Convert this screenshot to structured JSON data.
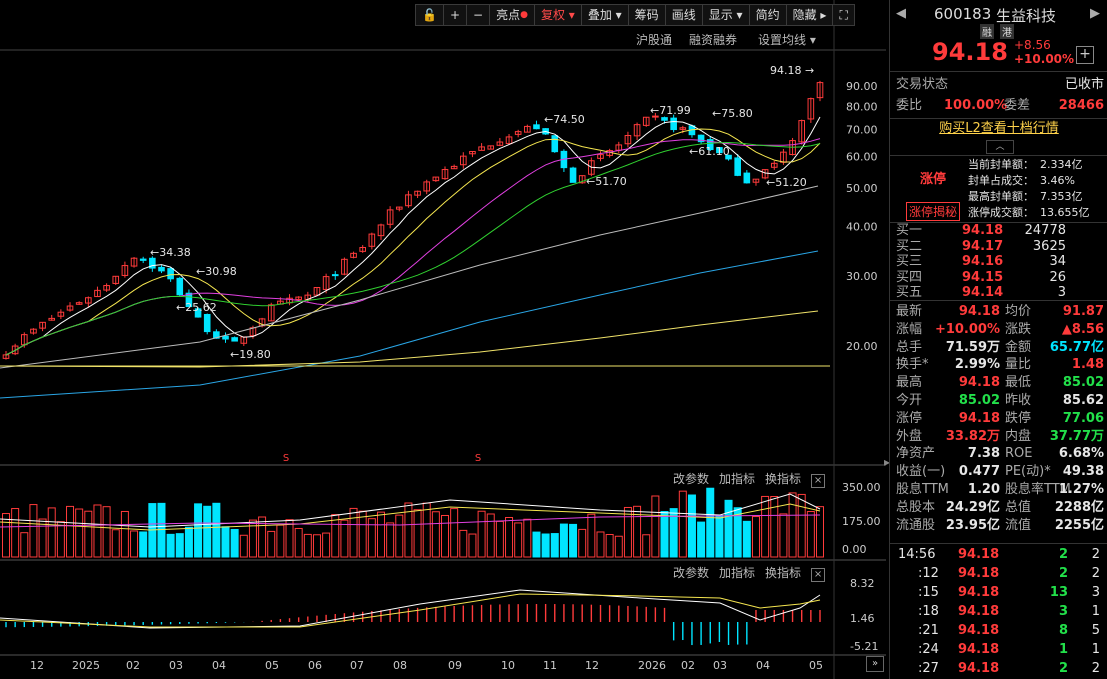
{
  "toolbar": {
    "items": [
      "亮点",
      "复权",
      "叠加",
      "筹码",
      "画线",
      "显示",
      "简约",
      "隐藏"
    ],
    "lock_icon": "lock-icon",
    "plus_icon": "zoom-in-icon",
    "minus_icon": "zoom-out-icon",
    "fullscreen_icon": "fullscreen-icon",
    "more_glyph": "▸"
  },
  "subbar": {
    "items": [
      "沪股通",
      "融资融券",
      "设置均线 ▾"
    ]
  },
  "price_labels": {
    "axis": [
      "90.00",
      "80.00",
      "70.00",
      "60.00",
      "50.00",
      "40.00",
      "30.00",
      "20.00"
    ],
    "annotations": [
      "94.18",
      "71.99",
      "75.80",
      "74.50",
      "61.10",
      "51.70",
      "51.20",
      "34.38",
      "30.98",
      "25.62",
      "19.80"
    ]
  },
  "vol_panel": {
    "buttons": [
      "改参数",
      "加指标",
      "换指标"
    ],
    "axis": [
      "350.00",
      "175.00",
      "0.00"
    ]
  },
  "macd_panel": {
    "buttons": [
      "改参数",
      "加指标",
      "换指标"
    ],
    "axis": [
      "8.32",
      "1.46",
      "-5.21"
    ]
  },
  "xaxis": [
    "12",
    "2025",
    "02",
    "03",
    "04",
    "05",
    "06",
    "07",
    "08",
    "09",
    "10",
    "11",
    "12",
    "2026",
    "02",
    "03",
    "04",
    "05"
  ],
  "markers": [
    "S",
    "S"
  ],
  "stock": {
    "code": "600183",
    "name": "生益科技",
    "tags": [
      "融",
      "港"
    ],
    "price": "94.18",
    "change": "+8.56",
    "change_pct": "+10.00%",
    "add_icon": "plus-box-icon"
  },
  "status": {
    "label": "交易状态",
    "value": "已收市"
  },
  "weibi": {
    "l1": "委比",
    "v1": "100.00%",
    "l2": "委差",
    "v2": "28466"
  },
  "l2_link": "购买L2查看十档行情",
  "limit": {
    "title": "涨停",
    "reveal": "涨停揭秘",
    "rows": [
      {
        "k": "当前封单额：",
        "v": "2.334亿"
      },
      {
        "k": "封单占成交：",
        "v": "3.46%"
      },
      {
        "k": "最高封单额：",
        "v": "7.353亿"
      },
      {
        "k": "涨停成交额：",
        "v": "13.655亿"
      }
    ]
  },
  "bids": [
    {
      "k": "买一",
      "p": "94.18",
      "v": "24778"
    },
    {
      "k": "买二",
      "p": "94.17",
      "v": "3625"
    },
    {
      "k": "买三",
      "p": "94.16",
      "v": "34"
    },
    {
      "k": "买四",
      "p": "94.15",
      "v": "26"
    },
    {
      "k": "买五",
      "p": "94.14",
      "v": "3"
    }
  ],
  "stats": [
    {
      "l1": "最新",
      "v1": "94.18",
      "c1": "r",
      "l2": "均价",
      "v2": "91.87",
      "c2": "r"
    },
    {
      "l1": "涨幅",
      "v1": "+10.00%",
      "c1": "r",
      "l2": "涨跌",
      "v2": "▲8.56",
      "c2": "r"
    },
    {
      "l1": "总手",
      "v1": "71.59万",
      "c1": "w",
      "l2": "金额",
      "v2": "65.77亿",
      "c2": "c"
    },
    {
      "l1": "换手*",
      "v1": "2.99%",
      "c1": "w",
      "l2": "量比",
      "v2": "1.48",
      "c2": "r"
    },
    {
      "l1": "最高",
      "v1": "94.18",
      "c1": "r",
      "l2": "最低",
      "v2": "85.02",
      "c2": "g"
    },
    {
      "l1": "今开",
      "v1": "85.02",
      "c1": "g",
      "l2": "昨收",
      "v2": "85.62",
      "c2": "w"
    },
    {
      "l1": "涨停",
      "v1": "94.18",
      "c1": "r",
      "l2": "跌停",
      "v2": "77.06",
      "c2": "g"
    },
    {
      "l1": "外盘",
      "v1": "33.82万",
      "c1": "r",
      "l2": "内盘",
      "v2": "37.77万",
      "c2": "g"
    },
    {
      "l1": "净资产",
      "v1": "7.38",
      "c1": "w",
      "l2": "ROE",
      "v2": "6.68%",
      "c2": "w"
    },
    {
      "l1": "收益(一)",
      "v1": "0.477",
      "c1": "w",
      "l2": "PE(动)*",
      "v2": "49.38",
      "c2": "w"
    },
    {
      "l1": "股息TTM",
      "v1": "1.20",
      "c1": "w",
      "l2": "股息率TTM",
      "v2": "1.27%",
      "c2": "w"
    },
    {
      "l1": "总股本",
      "v1": "24.29亿",
      "c1": "w",
      "l2": "总值",
      "v2": "2288亿",
      "c2": "w"
    },
    {
      "l1": "流通股",
      "v1": "23.95亿",
      "c1": "w",
      "l2": "流值",
      "v2": "2255亿",
      "c2": "w"
    }
  ],
  "ticks": [
    {
      "t": "14:56",
      "p": "94.18",
      "v": "2",
      "n": "2"
    },
    {
      "t": ":12",
      "p": "94.18",
      "v": "2",
      "n": "2"
    },
    {
      "t": ":15",
      "p": "94.18",
      "v": "13",
      "n": "3"
    },
    {
      "t": ":18",
      "p": "94.18",
      "v": "3",
      "n": "1"
    },
    {
      "t": ":21",
      "p": "94.18",
      "v": "8",
      "n": "5"
    },
    {
      "t": ":24",
      "p": "94.18",
      "v": "1",
      "n": "1"
    },
    {
      "t": ":27",
      "p": "94.18",
      "v": "2",
      "n": "2"
    }
  ],
  "colors": {
    "up": "#ff3b3b",
    "down": "#00e5ff",
    "green": "#22e04a"
  },
  "chart_data": {
    "type": "candlestick",
    "price_axis_ticks": [
      20,
      30,
      40,
      50,
      60,
      70,
      80,
      90
    ],
    "last_close": 94.18,
    "annotated_highs_lows": [
      94.18,
      75.8,
      74.5,
      71.99,
      61.1,
      51.7,
      51.2,
      34.38,
      30.98,
      25.62,
      19.8
    ],
    "volume_axis": [
      0,
      175,
      350
    ],
    "macd_axis": [
      -5.21,
      1.46,
      8.32
    ]
  }
}
